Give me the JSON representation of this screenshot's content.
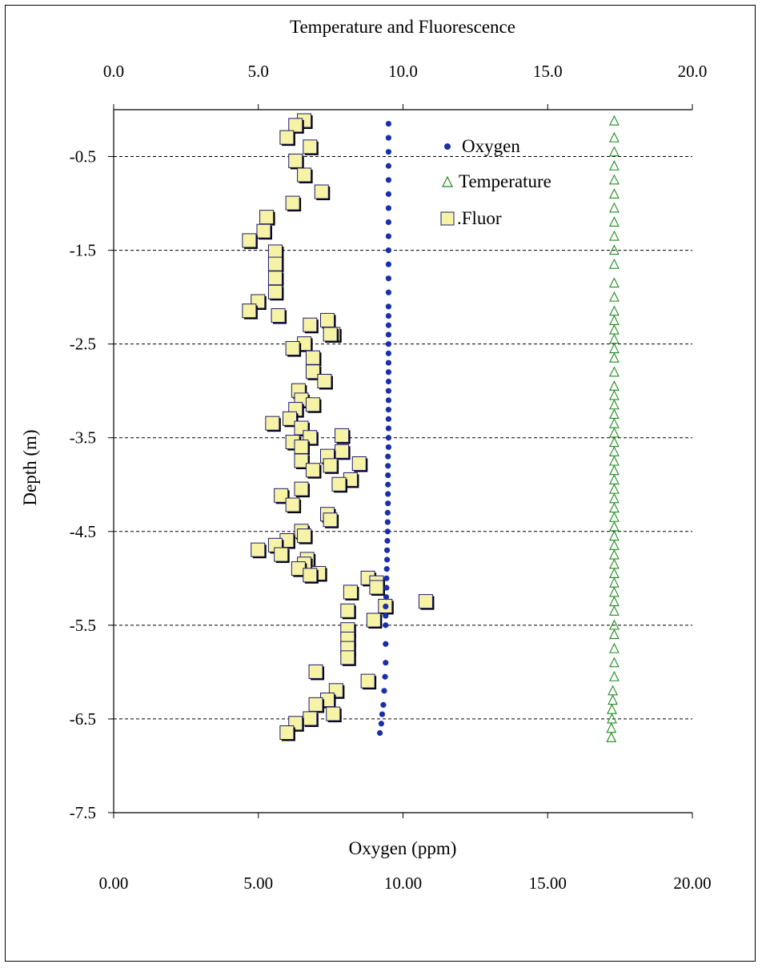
{
  "chart_data": {
    "type": "scatter",
    "title": "Temperature and Fluorescence",
    "xlabel": "Oxygen (ppm)",
    "ylabel": "Depth (m)",
    "x_bottom": {
      "range": [
        0,
        20
      ],
      "ticks": [
        "0.00",
        "5.00",
        "10.00",
        "15.00",
        "20.00"
      ]
    },
    "x_top": {
      "range": [
        0,
        20
      ],
      "ticks": [
        "0.0",
        "5.0",
        "10.0",
        "15.0",
        "20.0"
      ]
    },
    "y": {
      "range": [
        -7.5,
        0
      ],
      "ticks": [
        "-0.5",
        "-1.5",
        "-2.5",
        "-3.5",
        "-4.5",
        "-5.5",
        "-6.5",
        "-7.5"
      ]
    },
    "grid": "horizontal dashed at odd half-meter ticks",
    "legend_position": "top-right",
    "series": [
      {
        "name": "Oxygen",
        "marker": "circle",
        "axis": "bottom",
        "color": "#1a2fa8",
        "points": [
          [
            9.5,
            -0.15
          ],
          [
            9.5,
            -0.3
          ],
          [
            9.5,
            -0.45
          ],
          [
            9.5,
            -0.6
          ],
          [
            9.5,
            -0.75
          ],
          [
            9.5,
            -0.9
          ],
          [
            9.5,
            -1.05
          ],
          [
            9.5,
            -1.2
          ],
          [
            9.5,
            -1.35
          ],
          [
            9.5,
            -1.5
          ],
          [
            9.5,
            -1.65
          ],
          [
            9.5,
            -1.8
          ],
          [
            9.5,
            -1.95
          ],
          [
            9.5,
            -2.1
          ],
          [
            9.5,
            -2.2
          ],
          [
            9.5,
            -2.3
          ],
          [
            9.5,
            -2.4
          ],
          [
            9.5,
            -2.5
          ],
          [
            9.5,
            -2.6
          ],
          [
            9.5,
            -2.7
          ],
          [
            9.5,
            -2.8
          ],
          [
            9.5,
            -2.9
          ],
          [
            9.5,
            -3.0
          ],
          [
            9.5,
            -3.1
          ],
          [
            9.5,
            -3.2
          ],
          [
            9.5,
            -3.3
          ],
          [
            9.5,
            -3.4
          ],
          [
            9.5,
            -3.5
          ],
          [
            9.5,
            -3.6
          ],
          [
            9.48,
            -3.7
          ],
          [
            9.48,
            -3.8
          ],
          [
            9.48,
            -3.9
          ],
          [
            9.48,
            -4.0
          ],
          [
            9.48,
            -4.1
          ],
          [
            9.48,
            -4.2
          ],
          [
            9.47,
            -4.3
          ],
          [
            9.47,
            -4.4
          ],
          [
            9.47,
            -4.5
          ],
          [
            9.46,
            -4.6
          ],
          [
            9.45,
            -4.7
          ],
          [
            9.45,
            -4.8
          ],
          [
            9.44,
            -4.9
          ],
          [
            9.43,
            -5.0
          ],
          [
            9.43,
            -5.1
          ],
          [
            9.42,
            -5.2
          ],
          [
            9.4,
            -5.3
          ],
          [
            9.4,
            -5.4
          ],
          [
            9.4,
            -5.5
          ],
          [
            9.4,
            -5.7
          ],
          [
            9.4,
            -5.9
          ],
          [
            9.38,
            -6.05
          ],
          [
            9.35,
            -6.2
          ],
          [
            9.32,
            -6.35
          ],
          [
            9.28,
            -6.45
          ],
          [
            9.25,
            -6.55
          ],
          [
            9.2,
            -6.65
          ]
        ]
      },
      {
        "name": "Temperature",
        "marker": "triangle",
        "axis": "top",
        "color": "#1f8a1f",
        "points": [
          [
            17.3,
            -0.12
          ],
          [
            17.3,
            -0.3
          ],
          [
            17.3,
            -0.45
          ],
          [
            17.3,
            -0.6
          ],
          [
            17.3,
            -0.75
          ],
          [
            17.3,
            -0.9
          ],
          [
            17.3,
            -1.05
          ],
          [
            17.3,
            -1.2
          ],
          [
            17.3,
            -1.35
          ],
          [
            17.3,
            -1.5
          ],
          [
            17.3,
            -1.65
          ],
          [
            17.3,
            -1.85
          ],
          [
            17.3,
            -2.0
          ],
          [
            17.3,
            -2.15
          ],
          [
            17.3,
            -2.25
          ],
          [
            17.3,
            -2.35
          ],
          [
            17.3,
            -2.45
          ],
          [
            17.3,
            -2.55
          ],
          [
            17.3,
            -2.65
          ],
          [
            17.3,
            -2.8
          ],
          [
            17.3,
            -2.95
          ],
          [
            17.3,
            -3.05
          ],
          [
            17.3,
            -3.15
          ],
          [
            17.3,
            -3.25
          ],
          [
            17.3,
            -3.35
          ],
          [
            17.3,
            -3.45
          ],
          [
            17.3,
            -3.55
          ],
          [
            17.3,
            -3.65
          ],
          [
            17.3,
            -3.75
          ],
          [
            17.3,
            -3.85
          ],
          [
            17.3,
            -3.95
          ],
          [
            17.3,
            -4.05
          ],
          [
            17.3,
            -4.15
          ],
          [
            17.3,
            -4.25
          ],
          [
            17.3,
            -4.35
          ],
          [
            17.3,
            -4.45
          ],
          [
            17.3,
            -4.55
          ],
          [
            17.3,
            -4.65
          ],
          [
            17.3,
            -4.75
          ],
          [
            17.3,
            -4.85
          ],
          [
            17.3,
            -4.95
          ],
          [
            17.3,
            -5.05
          ],
          [
            17.3,
            -5.15
          ],
          [
            17.3,
            -5.25
          ],
          [
            17.3,
            -5.35
          ],
          [
            17.3,
            -5.5
          ],
          [
            17.3,
            -5.6
          ],
          [
            17.3,
            -5.75
          ],
          [
            17.3,
            -5.9
          ],
          [
            17.3,
            -6.05
          ],
          [
            17.25,
            -6.2
          ],
          [
            17.25,
            -6.3
          ],
          [
            17.22,
            -6.4
          ],
          [
            17.22,
            -6.5
          ],
          [
            17.2,
            -6.6
          ],
          [
            17.2,
            -6.7
          ]
        ]
      },
      {
        "name": ".Fluor",
        "marker": "square",
        "axis": "top",
        "color": "#f7f3a6",
        "points": [
          [
            6.6,
            -0.12
          ],
          [
            6.3,
            -0.17
          ],
          [
            6.0,
            -0.3
          ],
          [
            6.8,
            -0.4
          ],
          [
            6.3,
            -0.55
          ],
          [
            6.6,
            -0.7
          ],
          [
            7.2,
            -0.88
          ],
          [
            6.2,
            -1.0
          ],
          [
            5.3,
            -1.15
          ],
          [
            5.2,
            -1.3
          ],
          [
            4.7,
            -1.4
          ],
          [
            5.6,
            -1.52
          ],
          [
            5.6,
            -1.65
          ],
          [
            5.6,
            -1.8
          ],
          [
            5.6,
            -1.95
          ],
          [
            5.0,
            -2.05
          ],
          [
            4.7,
            -2.15
          ],
          [
            5.7,
            -2.2
          ],
          [
            7.4,
            -2.25
          ],
          [
            6.8,
            -2.3
          ],
          [
            7.6,
            -2.4
          ],
          [
            6.6,
            -2.5
          ],
          [
            6.2,
            -2.55
          ],
          [
            6.9,
            -2.65
          ],
          [
            7.5,
            -2.4
          ],
          [
            6.9,
            -2.8
          ],
          [
            7.3,
            -2.9
          ],
          [
            6.4,
            -3.0
          ],
          [
            6.5,
            -3.1
          ],
          [
            6.9,
            -3.15
          ],
          [
            6.3,
            -3.2
          ],
          [
            6.1,
            -3.3
          ],
          [
            5.5,
            -3.35
          ],
          [
            6.5,
            -3.4
          ],
          [
            6.8,
            -3.5
          ],
          [
            7.9,
            -3.48
          ],
          [
            6.2,
            -3.55
          ],
          [
            6.5,
            -3.6
          ],
          [
            7.9,
            -3.65
          ],
          [
            7.4,
            -3.7
          ],
          [
            6.5,
            -3.75
          ],
          [
            7.5,
            -3.8
          ],
          [
            8.5,
            -3.78
          ],
          [
            6.9,
            -3.85
          ],
          [
            8.2,
            -3.95
          ],
          [
            7.8,
            -4.0
          ],
          [
            6.5,
            -4.05
          ],
          [
            5.8,
            -4.12
          ],
          [
            6.2,
            -4.22
          ],
          [
            7.4,
            -4.32
          ],
          [
            7.5,
            -4.38
          ],
          [
            6.5,
            -4.5
          ],
          [
            6.6,
            -4.55
          ],
          [
            6.0,
            -4.6
          ],
          [
            5.6,
            -4.65
          ],
          [
            5.0,
            -4.7
          ],
          [
            5.8,
            -4.75
          ],
          [
            6.7,
            -4.8
          ],
          [
            6.6,
            -4.85
          ],
          [
            6.4,
            -4.9
          ],
          [
            7.1,
            -4.95
          ],
          [
            6.8,
            -4.97
          ],
          [
            8.8,
            -5.0
          ],
          [
            9.1,
            -5.05
          ],
          [
            9.1,
            -5.1
          ],
          [
            8.2,
            -5.15
          ],
          [
            10.8,
            -5.25
          ],
          [
            9.4,
            -5.3
          ],
          [
            8.1,
            -5.35
          ],
          [
            9.0,
            -5.45
          ],
          [
            8.1,
            -5.55
          ],
          [
            8.1,
            -5.65
          ],
          [
            8.1,
            -5.75
          ],
          [
            8.1,
            -5.85
          ],
          [
            7.0,
            -6.0
          ],
          [
            8.8,
            -6.1
          ],
          [
            7.7,
            -6.2
          ],
          [
            7.4,
            -6.3
          ],
          [
            7.0,
            -6.35
          ],
          [
            7.6,
            -6.45
          ],
          [
            6.8,
            -6.5
          ],
          [
            6.3,
            -6.55
          ],
          [
            6.0,
            -6.65
          ]
        ]
      }
    ]
  }
}
